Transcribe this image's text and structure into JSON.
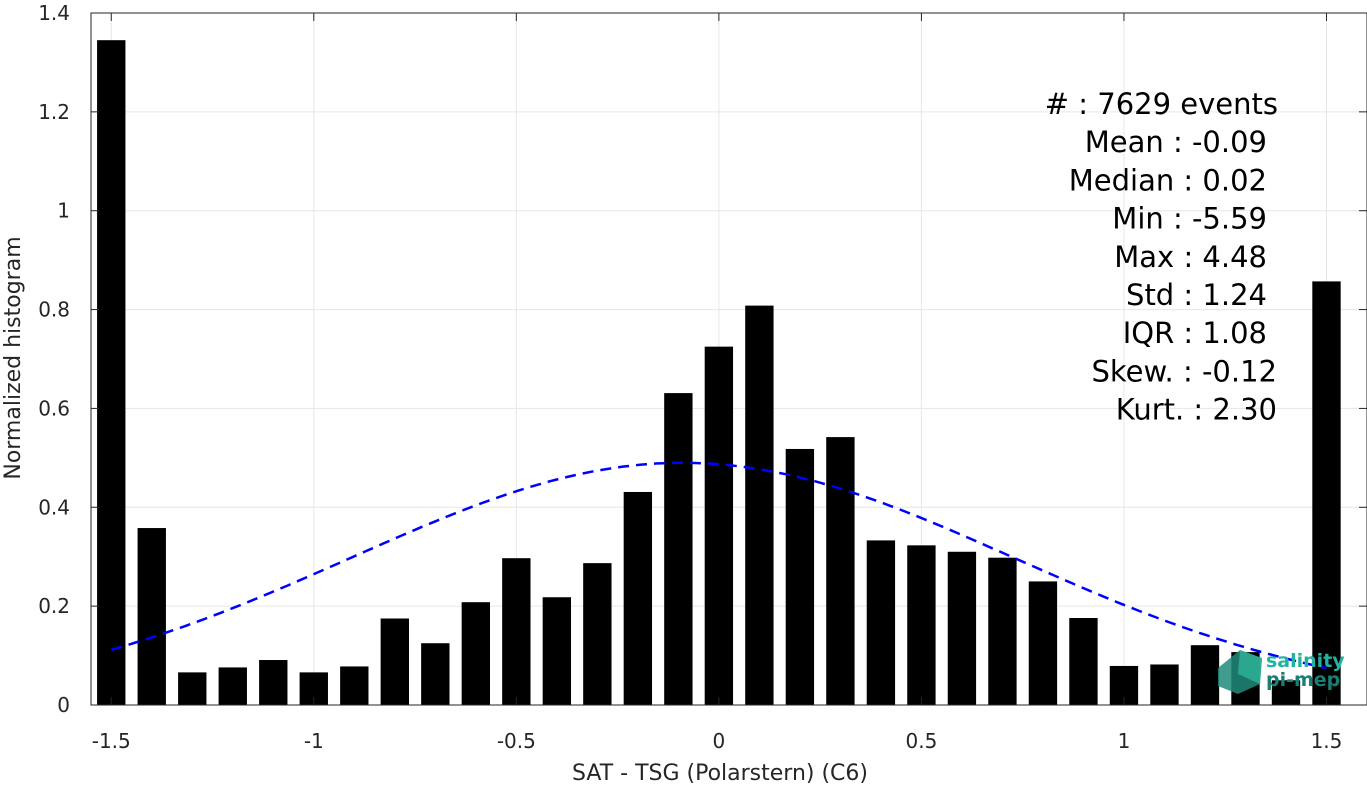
{
  "chart_data": {
    "type": "bar",
    "xlabel": "SAT - TSG (Polarstern) (C6)",
    "ylabel": "Normalized histogram",
    "xlim": [
      -1.55,
      1.6
    ],
    "ylim": [
      0,
      1.4
    ],
    "grid": true,
    "x_ticks": [
      -1.5,
      -1,
      -0.5,
      0,
      0.5,
      1,
      1.5
    ],
    "x_tick_labels": [
      "-1.5",
      "-1",
      "-0.5",
      "0",
      "0.5",
      "1",
      "1.5"
    ],
    "y_ticks": [
      0,
      0.2,
      0.4,
      0.6,
      0.8,
      1,
      1.2,
      1.4
    ],
    "y_tick_labels": [
      "0",
      "0.2",
      "0.4",
      "0.6",
      "0.8",
      "1",
      "1.2",
      "1.4"
    ],
    "bar_width": 0.07,
    "x": [
      -1.5,
      -1.4,
      -1.3,
      -1.2,
      -1.1,
      -1.0,
      -0.9,
      -0.8,
      -0.7,
      -0.6,
      -0.5,
      -0.4,
      -0.3,
      -0.2,
      -0.1,
      0.0,
      0.1,
      0.2,
      0.3,
      0.4,
      0.5,
      0.6,
      0.7,
      0.8,
      0.9,
      1.0,
      1.1,
      1.2,
      1.3,
      1.4,
      1.5
    ],
    "values": [
      1.345,
      0.358,
      0.066,
      0.076,
      0.091,
      0.066,
      0.078,
      0.175,
      0.125,
      0.208,
      0.297,
      0.218,
      0.287,
      0.431,
      0.631,
      0.725,
      0.808,
      0.518,
      0.542,
      0.333,
      0.323,
      0.31,
      0.298,
      0.25,
      0.176,
      0.079,
      0.082,
      0.121,
      0.107,
      0.05,
      0.857
    ],
    "fit": {
      "type": "normal",
      "mean": -0.09,
      "std": 0.82,
      "x_range": [
        -1.5,
        1.5
      ],
      "color": "#0000ff",
      "style": "dashed"
    },
    "bar_color": "#000000",
    "annotation_lines": [
      "#  : 7629 events",
      "Mean : -0.09",
      "Median : 0.02",
      "Min : -5.59",
      "Max : 4.48",
      "Std : 1.24",
      "IQR : 1.08",
      "Skew. : -0.12",
      "Kurt. : 2.30"
    ]
  },
  "logo": {
    "line1": "salinity",
    "line2": "pi-mep"
  }
}
